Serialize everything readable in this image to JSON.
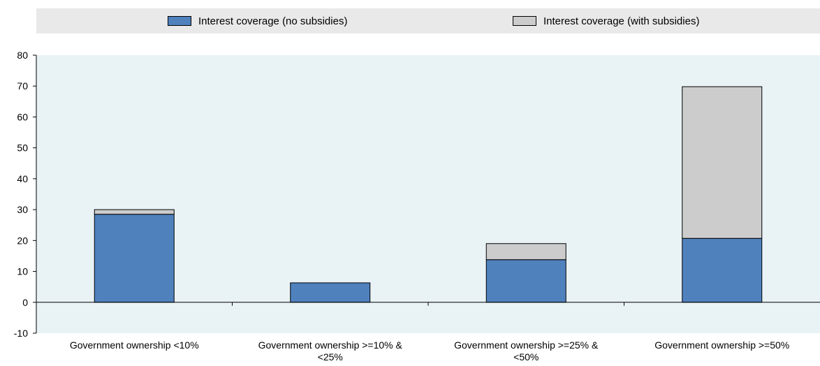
{
  "chart_data": {
    "type": "bar",
    "stacked": true,
    "categories": [
      [
        "Government ownership <10%"
      ],
      [
        "Government ownership >=10% &",
        "<25%"
      ],
      [
        "Government ownership >=25% &",
        "<50%"
      ],
      [
        "Government ownership >=50%"
      ]
    ],
    "series": [
      {
        "name": "Interest coverage (no subsidies)",
        "color": "#4f81bd",
        "values": [
          28.5,
          6.3,
          13.8,
          20.7
        ]
      },
      {
        "name": "Interest coverage (with subsidies)",
        "color": "#cccccc",
        "values": [
          1.5,
          0.0,
          5.2,
          49.1
        ]
      }
    ],
    "ylim": [
      -10,
      80
    ],
    "yticks": [
      -10,
      0,
      10,
      20,
      30,
      40,
      50,
      60,
      70,
      80
    ],
    "title": "",
    "xlabel": "",
    "ylabel": "",
    "grid": false,
    "legend_position": "top",
    "plot_background": "#e9f3f6"
  }
}
